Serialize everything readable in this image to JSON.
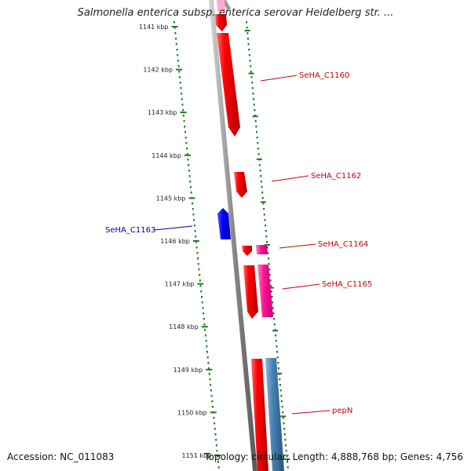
{
  "title": "Salmonella enterica subsp. enterica serovar Heidelberg str. ...",
  "accession": "Accession: NC_011083",
  "stats": "Topology: circular; Length: 4,888,768 bp; Genes: 4,756",
  "colors": {
    "backbone": "#8a8a8a",
    "dots": "#1e7a1e",
    "forward_gene": "#ff0000",
    "reverse_gene": "#0000ff",
    "pink_feature": "#ff1493",
    "blue_feature": "#4682b4",
    "label_red": "#cc0000",
    "label_blue": "#0000aa"
  },
  "ticks": [
    "1141 kbp",
    "1142 kbp",
    "1143 kbp",
    "1144 kbp",
    "1145 kbp",
    "1146 kbp",
    "1147 kbp",
    "1148 kbp",
    "1149 kbp",
    "1150 kbp",
    "1151 kbp"
  ],
  "gene_labels": [
    {
      "text": "SeHA_C1160",
      "color": "red"
    },
    {
      "text": "SeHA_C1162",
      "color": "red"
    },
    {
      "text": "SeHA_C1163",
      "color": "blue"
    },
    {
      "text": "SeHA_C1164",
      "color": "red"
    },
    {
      "text": "SeHA_C1165",
      "color": "red"
    },
    {
      "text": "pepN",
      "color": "red"
    }
  ]
}
